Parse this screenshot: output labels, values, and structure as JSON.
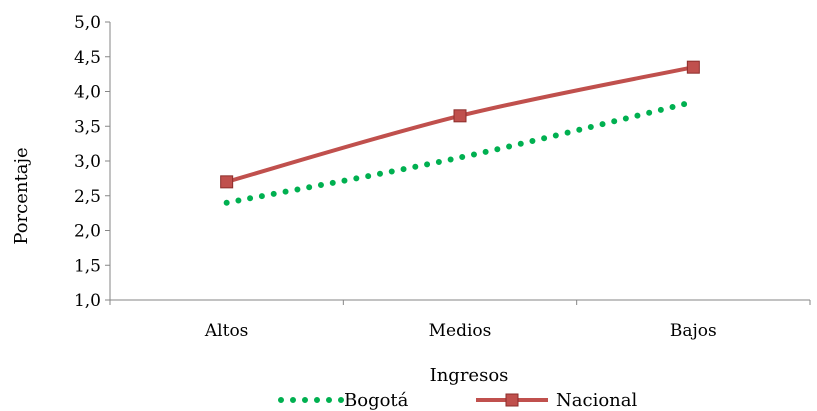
{
  "chart_data": {
    "type": "line",
    "title": "",
    "xlabel": "Ingresos",
    "ylabel": "Porcentaje",
    "categories": [
      "Altos",
      "Medios",
      "Bajos"
    ],
    "ylim": [
      1.0,
      5.0
    ],
    "yticks": [
      "1,0",
      "1,5",
      "2,0",
      "2,5",
      "3,0",
      "3,5",
      "4,0",
      "4,5",
      "5,0"
    ],
    "grid": false,
    "legend_position": "bottom",
    "series": [
      {
        "name": "Bogotá",
        "values": [
          2.4,
          3.05,
          3.85
        ],
        "color": "#00b050",
        "style": "dotted",
        "marker": "none"
      },
      {
        "name": "Nacional",
        "values": [
          2.7,
          3.65,
          4.35
        ],
        "color": "#c0504d",
        "style": "solid",
        "marker": "square"
      }
    ]
  }
}
